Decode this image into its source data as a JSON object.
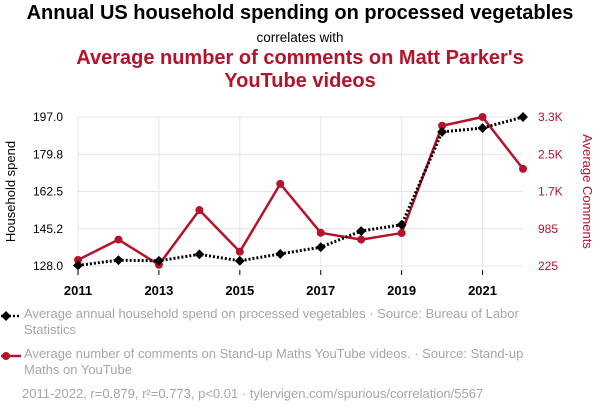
{
  "title": "Annual US household spending on processed vegetables",
  "subtitle": "correlates with",
  "title2": "Average number of comments on Matt Parker's YouTube videos",
  "colors": {
    "series1": "#000000",
    "series2": "#b5132b",
    "grid": "#e4e4e4",
    "muted": "#a6a6a6"
  },
  "chart_data": {
    "type": "line",
    "x": [
      2011,
      2012,
      2013,
      2014,
      2015,
      2016,
      2017,
      2018,
      2019,
      2020,
      2021,
      2022
    ],
    "xticks": [
      "2011",
      "2013",
      "2015",
      "2017",
      "2019",
      "2021"
    ],
    "xlim": [
      2011,
      2022
    ],
    "grid": true,
    "series": [
      {
        "name": "Household spend",
        "axis": "left",
        "ylabel": "Household spend",
        "ylim": [
          128.0,
          197.0
        ],
        "yticks": [
          "128.0",
          "145.2",
          "162.5",
          "179.8",
          "197.0"
        ],
        "style": "dotted-line-diamond-markers",
        "values": [
          128.3,
          130.7,
          130.4,
          133.4,
          130.4,
          133.6,
          136.7,
          144.2,
          147.1,
          190.1,
          191.9,
          197.0
        ]
      },
      {
        "name": "Average Comments",
        "axis": "right",
        "ylabel": "Average Comments",
        "ylim": [
          225,
          3300
        ],
        "yticks": [
          "225",
          "985",
          "1.7K",
          "2.5K",
          "3.3K"
        ],
        "style": "solid-line-circle-markers",
        "values": [
          350,
          770,
          250,
          1380,
          520,
          1920,
          910,
          770,
          905,
          3120,
          3300,
          2230
        ]
      }
    ]
  },
  "legend": [
    {
      "text": "Average annual household spend on processed vegetables · Source: Bureau of Labor Statistics"
    },
    {
      "text": "Average number of comments on Stand-up Maths YouTube videos. · Source: Stand-up Maths on YouTube"
    }
  ],
  "footer": "2011-2022, r=0.879, r²=0.773, p<0.01 · tylervigen.com/spurious/correlation/5567"
}
